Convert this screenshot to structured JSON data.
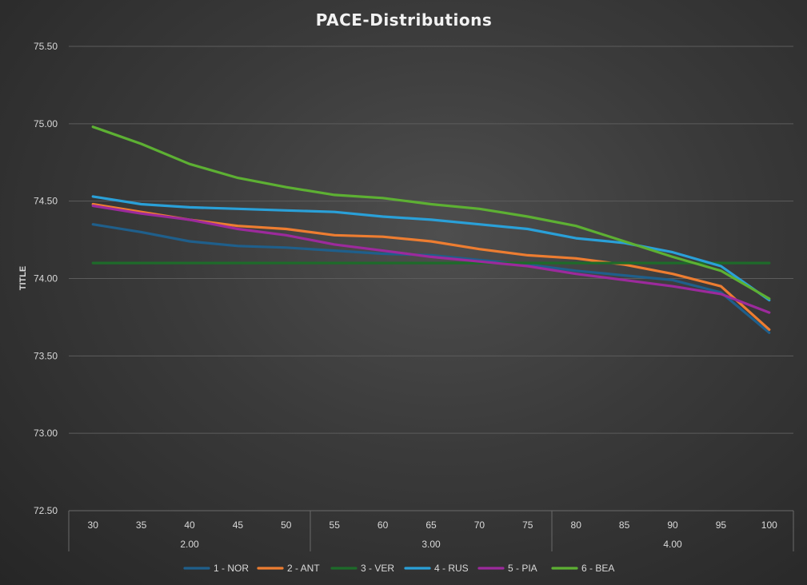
{
  "chart_data": {
    "type": "line",
    "title": "PACE-Distributions",
    "ylabel": "TITLE",
    "xlabel": "",
    "ylim": [
      72.5,
      75.5
    ],
    "yticks": [
      "72.50",
      "73.00",
      "73.50",
      "74.00",
      "74.50",
      "75.00",
      "75.50"
    ],
    "ytick_values": [
      72.5,
      73.0,
      73.5,
      74.0,
      74.5,
      75.0,
      75.5
    ],
    "categories": [
      "30",
      "35",
      "40",
      "45",
      "50",
      "55",
      "60",
      "65",
      "70",
      "75",
      "80",
      "85",
      "90",
      "95",
      "100"
    ],
    "groups": [
      {
        "label": "2.00",
        "count": 5
      },
      {
        "label": "3.00",
        "count": 5
      },
      {
        "label": "4.00",
        "count": 5
      }
    ],
    "grid": true,
    "legend_position": "bottom",
    "series": [
      {
        "name": "1 - NOR",
        "color": "#1f5f8b",
        "values": [
          74.35,
          74.3,
          74.24,
          74.21,
          74.2,
          74.18,
          74.16,
          74.15,
          74.12,
          74.09,
          74.05,
          74.02,
          73.99,
          73.91,
          73.65
        ]
      },
      {
        "name": "2 - ANT",
        "color": "#ed7d31",
        "values": [
          74.48,
          74.43,
          74.38,
          74.34,
          74.32,
          74.28,
          74.27,
          74.24,
          74.19,
          74.15,
          74.13,
          74.09,
          74.03,
          73.95,
          73.67
        ]
      },
      {
        "name": "3 - VER",
        "color": "#1e6b2a",
        "values": [
          74.1,
          74.1,
          74.1,
          74.1,
          74.1,
          74.1,
          74.1,
          74.1,
          74.1,
          74.1,
          74.1,
          74.1,
          74.1,
          74.1,
          74.1
        ]
      },
      {
        "name": "4 - RUS",
        "color": "#2aa0d8",
        "values": [
          74.53,
          74.48,
          74.46,
          74.45,
          74.44,
          74.43,
          74.4,
          74.38,
          74.35,
          74.32,
          74.26,
          74.23,
          74.17,
          74.08,
          73.86
        ]
      },
      {
        "name": "5 - PIA",
        "color": "#9c2a9c",
        "values": [
          74.47,
          74.42,
          74.38,
          74.32,
          74.28,
          74.22,
          74.18,
          74.14,
          74.11,
          74.08,
          74.03,
          73.99,
          73.95,
          73.9,
          73.78
        ]
      },
      {
        "name": "6 - BEA",
        "color": "#5db033",
        "values": [
          74.98,
          74.87,
          74.74,
          74.65,
          74.59,
          74.54,
          74.52,
          74.48,
          74.45,
          74.4,
          74.34,
          74.24,
          74.14,
          74.05,
          73.87
        ]
      }
    ]
  }
}
